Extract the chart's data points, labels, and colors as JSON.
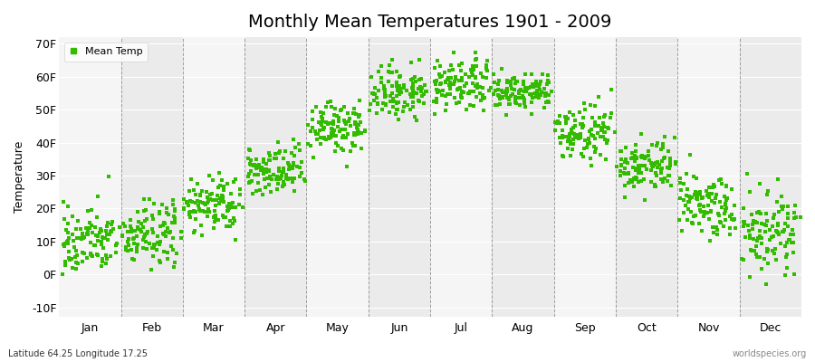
{
  "title": "Monthly Mean Temperatures 1901 - 2009",
  "ylabel": "Temperature",
  "xlabel_months": [
    "Jan",
    "Feb",
    "Mar",
    "Apr",
    "May",
    "Jun",
    "Jul",
    "Aug",
    "Sep",
    "Oct",
    "Nov",
    "Dec"
  ],
  "yticks": [
    -10,
    0,
    10,
    20,
    30,
    40,
    50,
    60,
    70
  ],
  "ytick_labels": [
    "-10F",
    "0F",
    "10F",
    "20F",
    "30F",
    "40F",
    "50F",
    "60F",
    "70F"
  ],
  "ylim": [
    -13,
    72
  ],
  "dot_color": "#33bb00",
  "dot_size": 5,
  "background_color": "#ffffff",
  "plot_bg_color": "#f0f0f0",
  "band_color_light": "#f5f5f5",
  "band_color_dark": "#ebebeb",
  "grid_color": "#ffffff",
  "dashed_line_color": "#666666",
  "title_fontsize": 14,
  "axis_fontsize": 9,
  "footer_left": "Latitude 64.25 Longitude 17.25",
  "footer_right": "worldspecies.org",
  "legend_label": "Mean Temp",
  "num_years": 109,
  "seed": 42,
  "monthly_means_F": [
    10,
    12,
    21,
    31,
    44,
    55,
    57,
    55,
    43,
    33,
    21,
    13
  ],
  "monthly_stds_F": [
    5,
    5,
    4,
    4,
    4,
    4,
    4,
    3,
    4,
    4,
    5,
    6
  ]
}
